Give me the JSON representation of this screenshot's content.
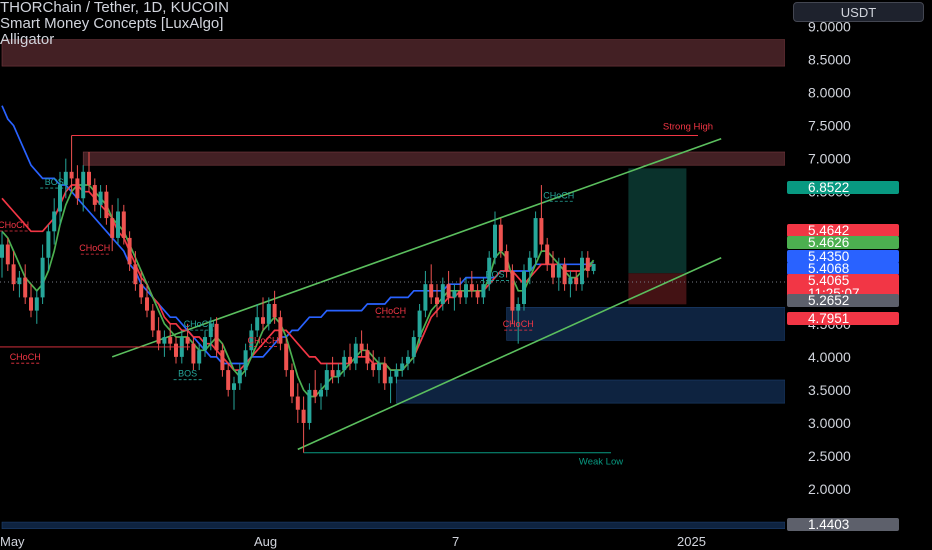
{
  "legend": {
    "symbol": "THORChain / Tether, 1D, KUCOIN",
    "indicator1": "Smart Money Concepts [LuxAlgo]",
    "indicator2": "Alligator"
  },
  "currency_button": "USDT",
  "colors": {
    "up": "#26a69a",
    "down": "#ef5350",
    "jaw": "#2962ff",
    "teeth": "#f23645",
    "lips": "#4caf50",
    "channel": "#5bbf5e",
    "supply_zone": "#4a2428",
    "demand_zone": "#0f2747",
    "axis_text": "#d1d4dc"
  },
  "chart_data": {
    "type": "candlestick",
    "title": "THORChain / Tether, 1D, KUCOIN",
    "x_axis_labels": [
      "May",
      "Aug",
      "7",
      "2025"
    ],
    "y_axis": {
      "scale": "linear",
      "ticks": [
        9.0,
        8.5,
        8.0,
        7.5,
        7.0,
        6.5,
        4.5,
        4.0,
        3.5,
        3.0,
        2.5,
        2.0
      ],
      "tick_labels": [
        "9.0000",
        "8.5000",
        "8.0000",
        "7.5000",
        "7.0000",
        "6.5000",
        "4.5000",
        "4.0000",
        "3.5000",
        "3.0000",
        "2.5000",
        "2.0000"
      ],
      "range": [
        1.35,
        9.4
      ]
    },
    "ohlc": [
      [
        5.5,
        5.9,
        5.2,
        5.7
      ],
      [
        5.7,
        5.8,
        5.3,
        5.4
      ],
      [
        5.4,
        5.6,
        5.0,
        5.1
      ],
      [
        5.1,
        5.3,
        4.9,
        5.2
      ],
      [
        5.2,
        5.4,
        4.8,
        4.9
      ],
      [
        4.9,
        5.1,
        4.6,
        4.7
      ],
      [
        4.7,
        5.0,
        4.5,
        4.9
      ],
      [
        4.9,
        5.7,
        4.8,
        5.5
      ],
      [
        5.5,
        6.0,
        5.3,
        5.9
      ],
      [
        5.9,
        6.4,
        5.7,
        6.2
      ],
      [
        6.2,
        6.8,
        6.0,
        6.6
      ],
      [
        6.6,
        7.0,
        6.4,
        6.8
      ],
      [
        6.8,
        7.35,
        6.5,
        6.7
      ],
      [
        6.7,
        6.9,
        6.3,
        6.4
      ],
      [
        6.4,
        6.9,
        6.2,
        6.8
      ],
      [
        6.8,
        7.1,
        6.5,
        6.6
      ],
      [
        6.6,
        6.7,
        6.2,
        6.3
      ],
      [
        6.3,
        6.6,
        6.1,
        6.5
      ],
      [
        6.5,
        6.6,
        6.0,
        6.1
      ],
      [
        6.1,
        6.3,
        5.6,
        5.8
      ],
      [
        5.8,
        6.4,
        5.7,
        6.2
      ],
      [
        6.2,
        6.3,
        5.7,
        5.8
      ],
      [
        5.8,
        5.9,
        5.3,
        5.4
      ],
      [
        5.4,
        5.6,
        5.0,
        5.1
      ],
      [
        5.1,
        5.3,
        4.8,
        4.9
      ],
      [
        4.9,
        5.1,
        4.6,
        4.7
      ],
      [
        4.7,
        4.8,
        4.3,
        4.4
      ],
      [
        4.4,
        4.6,
        4.1,
        4.2
      ],
      [
        4.2,
        4.4,
        4.0,
        4.3
      ],
      [
        4.3,
        4.5,
        4.1,
        4.2
      ],
      [
        4.2,
        4.3,
        3.9,
        4.0
      ],
      [
        4.0,
        4.4,
        3.9,
        4.3
      ],
      [
        4.3,
        4.5,
        4.1,
        4.2
      ],
      [
        4.2,
        4.3,
        3.8,
        3.9
      ],
      [
        3.9,
        4.2,
        3.8,
        4.1
      ],
      [
        4.1,
        4.4,
        4.0,
        4.3
      ],
      [
        4.3,
        4.6,
        4.1,
        4.5
      ],
      [
        4.5,
        4.6,
        4.0,
        4.1
      ],
      [
        4.1,
        4.2,
        3.7,
        3.8
      ],
      [
        3.8,
        3.9,
        3.4,
        3.5
      ],
      [
        3.5,
        3.7,
        3.2,
        3.6
      ],
      [
        3.6,
        3.9,
        3.5,
        3.8
      ],
      [
        3.8,
        4.2,
        3.7,
        4.1
      ],
      [
        4.1,
        4.5,
        4.0,
        4.4
      ],
      [
        4.4,
        4.8,
        4.3,
        4.6
      ],
      [
        4.6,
        4.9,
        4.4,
        4.5
      ],
      [
        4.5,
        4.9,
        4.4,
        4.8
      ],
      [
        4.8,
        5.0,
        4.5,
        4.6
      ],
      [
        4.6,
        4.7,
        4.1,
        4.2
      ],
      [
        4.2,
        4.3,
        3.7,
        3.8
      ],
      [
        3.8,
        3.9,
        3.3,
        3.4
      ],
      [
        3.4,
        3.6,
        3.0,
        3.2
      ],
      [
        3.2,
        3.4,
        2.55,
        3.0
      ],
      [
        3.0,
        3.6,
        2.9,
        3.5
      ],
      [
        3.5,
        3.8,
        3.3,
        3.4
      ],
      [
        3.4,
        3.6,
        3.2,
        3.5
      ],
      [
        3.5,
        3.9,
        3.4,
        3.8
      ],
      [
        3.8,
        4.0,
        3.6,
        3.7
      ],
      [
        3.7,
        3.9,
        3.6,
        3.8
      ],
      [
        3.8,
        4.1,
        3.7,
        4.0
      ],
      [
        4.0,
        4.2,
        3.8,
        3.9
      ],
      [
        3.9,
        4.3,
        3.8,
        4.2
      ],
      [
        4.2,
        4.4,
        4.0,
        4.1
      ],
      [
        4.1,
        4.2,
        3.8,
        3.9
      ],
      [
        3.9,
        4.1,
        3.7,
        3.8
      ],
      [
        3.8,
        4.0,
        3.6,
        3.9
      ],
      [
        3.9,
        4.0,
        3.5,
        3.6
      ],
      [
        3.6,
        3.8,
        3.3,
        3.7
      ],
      [
        3.7,
        3.9,
        3.6,
        3.8
      ],
      [
        3.8,
        4.0,
        3.7,
        3.9
      ],
      [
        3.9,
        4.1,
        3.8,
        4.0
      ],
      [
        4.0,
        4.4,
        3.9,
        4.3
      ],
      [
        4.3,
        4.8,
        4.2,
        4.7
      ],
      [
        4.7,
        5.3,
        4.6,
        5.1
      ],
      [
        5.1,
        5.4,
        4.8,
        4.9
      ],
      [
        4.9,
        5.1,
        4.6,
        4.8
      ],
      [
        4.8,
        5.2,
        4.7,
        5.1
      ],
      [
        5.1,
        5.3,
        4.8,
        4.9
      ],
      [
        4.9,
        5.1,
        4.7,
        5.0
      ],
      [
        5.0,
        5.2,
        4.8,
        4.9
      ],
      [
        4.9,
        5.2,
        4.8,
        5.1
      ],
      [
        5.1,
        5.3,
        4.9,
        5.0
      ],
      [
        5.0,
        5.1,
        4.8,
        4.9
      ],
      [
        4.9,
        5.2,
        4.8,
        5.1
      ],
      [
        5.1,
        5.6,
        5.0,
        5.5
      ],
      [
        5.5,
        6.2,
        5.4,
        6.0
      ],
      [
        6.0,
        6.1,
        5.5,
        5.6
      ],
      [
        5.6,
        5.7,
        5.2,
        5.3
      ],
      [
        5.3,
        5.4,
        4.5,
        4.7
      ],
      [
        4.7,
        4.9,
        4.2,
        4.8
      ],
      [
        4.8,
        5.4,
        4.7,
        5.3
      ],
      [
        5.3,
        5.6,
        5.1,
        5.5
      ],
      [
        5.5,
        6.2,
        5.4,
        6.1
      ],
      [
        6.1,
        6.6,
        5.6,
        5.7
      ],
      [
        5.7,
        5.8,
        5.3,
        5.4
      ],
      [
        5.4,
        5.6,
        5.1,
        5.2
      ],
      [
        5.2,
        5.5,
        5.0,
        5.4
      ],
      [
        5.4,
        5.5,
        5.0,
        5.1
      ],
      [
        5.1,
        5.3,
        4.9,
        5.2
      ],
      [
        5.2,
        5.3,
        5.0,
        5.1
      ],
      [
        5.1,
        5.6,
        5.0,
        5.5
      ],
      [
        5.5,
        5.6,
        5.2,
        5.3
      ],
      [
        5.3,
        5.4,
        5.25,
        5.4065
      ]
    ],
    "series": [
      {
        "name": "Alligator Jaw",
        "values": [
          7.8,
          7.6,
          7.5,
          7.3,
          7.1,
          6.9,
          6.8,
          6.7,
          6.7,
          6.7,
          6.6,
          6.6,
          6.5,
          6.4,
          6.3,
          6.2,
          6.1,
          6.0,
          5.9,
          5.8,
          5.7,
          5.6,
          5.4,
          5.3,
          5.1,
          5.0,
          4.9,
          4.8,
          4.7,
          4.6,
          4.6,
          4.5,
          4.4,
          4.3,
          4.2,
          4.1,
          4.0,
          4.0,
          3.9,
          3.9,
          3.9,
          3.9,
          3.9,
          4.0,
          4.0,
          4.0,
          4.1,
          4.2,
          4.3,
          4.3,
          4.4,
          4.4,
          4.5,
          4.6,
          4.6,
          4.6,
          4.7,
          4.7,
          4.7,
          4.7,
          4.7,
          4.7,
          4.7,
          4.8,
          4.8,
          4.8,
          4.8,
          4.9,
          4.9,
          4.9,
          4.9,
          5.0,
          5.0,
          5.0,
          5.0,
          5.0,
          5.0,
          5.1,
          5.1,
          5.1,
          5.2,
          5.2,
          5.2,
          5.2,
          5.2,
          5.2,
          5.3,
          5.3,
          5.3,
          5.3,
          5.3,
          5.3,
          5.4,
          5.4,
          5.4,
          5.4,
          5.4,
          5.4,
          5.4,
          5.4,
          5.4,
          5.4,
          5.435
        ]
      },
      {
        "name": "Alligator Teeth",
        "values": [
          6.4,
          6.3,
          6.2,
          6.1,
          6.0,
          5.9,
          5.9,
          5.9,
          6.0,
          6.1,
          6.3,
          6.5,
          6.6,
          6.6,
          6.5,
          6.5,
          6.4,
          6.3,
          6.2,
          6.1,
          5.9,
          5.8,
          5.6,
          5.4,
          5.2,
          5.1,
          4.9,
          4.8,
          4.6,
          4.5,
          4.5,
          4.4,
          4.4,
          4.3,
          4.3,
          4.2,
          4.2,
          4.1,
          4.0,
          3.9,
          3.8,
          3.8,
          3.9,
          4.0,
          4.1,
          4.2,
          4.3,
          4.4,
          4.4,
          4.4,
          4.3,
          4.2,
          4.1,
          4.0,
          4.0,
          3.9,
          3.9,
          3.9,
          3.9,
          3.9,
          3.9,
          4.0,
          4.0,
          4.0,
          3.9,
          3.9,
          3.9,
          3.8,
          3.8,
          3.8,
          3.9,
          4.0,
          4.2,
          4.4,
          4.6,
          4.7,
          4.8,
          4.9,
          4.9,
          5.0,
          5.0,
          5.0,
          5.0,
          5.0,
          5.1,
          5.2,
          5.3,
          5.3,
          5.3,
          5.2,
          5.1,
          5.2,
          5.3,
          5.4,
          5.4,
          5.4,
          5.4,
          5.3,
          5.3,
          5.3,
          5.3,
          5.35,
          5.4068
        ]
      },
      {
        "name": "Alligator Lips",
        "values": [
          5.9,
          5.8,
          5.6,
          5.4,
          5.2,
          5.1,
          5.0,
          5.1,
          5.3,
          5.6,
          6.0,
          6.3,
          6.5,
          6.6,
          6.6,
          6.6,
          6.5,
          6.4,
          6.3,
          6.1,
          6.0,
          5.9,
          5.7,
          5.5,
          5.3,
          5.1,
          4.9,
          4.7,
          4.5,
          4.4,
          4.3,
          4.3,
          4.3,
          4.2,
          4.1,
          4.1,
          4.2,
          4.3,
          4.2,
          4.0,
          3.8,
          3.7,
          3.8,
          4.0,
          4.2,
          4.4,
          4.5,
          4.6,
          4.5,
          4.3,
          4.0,
          3.7,
          3.5,
          3.4,
          3.4,
          3.5,
          3.6,
          3.7,
          3.7,
          3.8,
          3.9,
          4.0,
          4.1,
          4.1,
          4.0,
          3.9,
          3.9,
          3.8,
          3.8,
          3.8,
          3.9,
          4.0,
          4.3,
          4.5,
          4.7,
          4.8,
          4.9,
          5.0,
          5.0,
          5.0,
          5.0,
          5.0,
          5.0,
          5.0,
          5.2,
          5.5,
          5.6,
          5.5,
          5.2,
          5.0,
          5.0,
          5.2,
          5.4,
          5.6,
          5.6,
          5.5,
          5.4,
          5.3,
          5.2,
          5.2,
          5.3,
          5.35,
          5.4626
        ]
      }
    ],
    "price_labels": [
      {
        "label": "6.8522",
        "value": 6.8522,
        "color": "#089981"
      },
      {
        "label": "5.4642",
        "value": 5.4642,
        "color": "#f23645"
      },
      {
        "label": "5.4626",
        "value": 5.4626,
        "color": "#4caf50"
      },
      {
        "label": "5.4350",
        "value": 5.435,
        "color": "#2962ff"
      },
      {
        "label": "5.4068",
        "value": 5.4068,
        "color": "#2962ff"
      },
      {
        "label": "5.4065",
        "value": 5.4065,
        "color": "#f23645",
        "countdown": "11:25:07"
      },
      {
        "label": "5.2652",
        "value": 5.2652,
        "color": "#5d606b"
      },
      {
        "label": "4.7951",
        "value": 4.7951,
        "color": "#f23645"
      },
      {
        "label": "1.4403",
        "value": 1.4403,
        "color": "#5d606b"
      }
    ],
    "zones": [
      {
        "kind": "supply",
        "from_bar": 0,
        "low": 8.4,
        "high": 8.8
      },
      {
        "kind": "supply",
        "from_bar": 14,
        "low": 6.9,
        "high": 7.1
      },
      {
        "kind": "demand",
        "from_bar": 87,
        "low": 4.25,
        "high": 4.75
      },
      {
        "kind": "demand",
        "from_bar": 68,
        "low": 3.3,
        "high": 3.65
      },
      {
        "kind": "demand",
        "from_bar": 0,
        "low": 1.4,
        "high": 1.5
      }
    ],
    "channel": {
      "upper": {
        "from_bar": 19,
        "from_value": 4.0,
        "to_bar": 124,
        "to_value": 7.3
      },
      "lower": {
        "from_bar": 51,
        "from_value": 2.6,
        "to_bar": 124,
        "to_value": 5.5
      }
    },
    "levels": [
      {
        "label": "Strong High",
        "value": 7.35,
        "from_bar": 12
      },
      {
        "label": "Weak Low",
        "value": 2.55,
        "from_bar": 52
      }
    ],
    "structure_labels": [
      {
        "label": "BOS",
        "bar": 9,
        "value": 6.6
      },
      {
        "label": "CHoCH",
        "bar": 2,
        "value": 5.95
      },
      {
        "label": "CHoCH",
        "bar": 16,
        "value": 5.6
      },
      {
        "label": "CHoCH",
        "bar": 4,
        "value": 3.95
      },
      {
        "label": "BOS",
        "bar": 32,
        "value": 3.7
      },
      {
        "label": "CHoCH",
        "bar": 34,
        "value": 4.45
      },
      {
        "label": "CHoCH",
        "bar": 45,
        "value": 4.2
      },
      {
        "label": "CHoCH",
        "bar": 67,
        "value": 4.65
      },
      {
        "label": "BOS",
        "bar": 85,
        "value": 5.2
      },
      {
        "label": "CHoCH",
        "bar": 96,
        "value": 6.4
      },
      {
        "label": "CHoCH",
        "bar": 89,
        "value": 4.45
      }
    ],
    "trade_box": {
      "from_bar": 108,
      "to_bar": 118,
      "entry": 5.2652,
      "target": 6.8522,
      "stop": 4.7951
    }
  }
}
